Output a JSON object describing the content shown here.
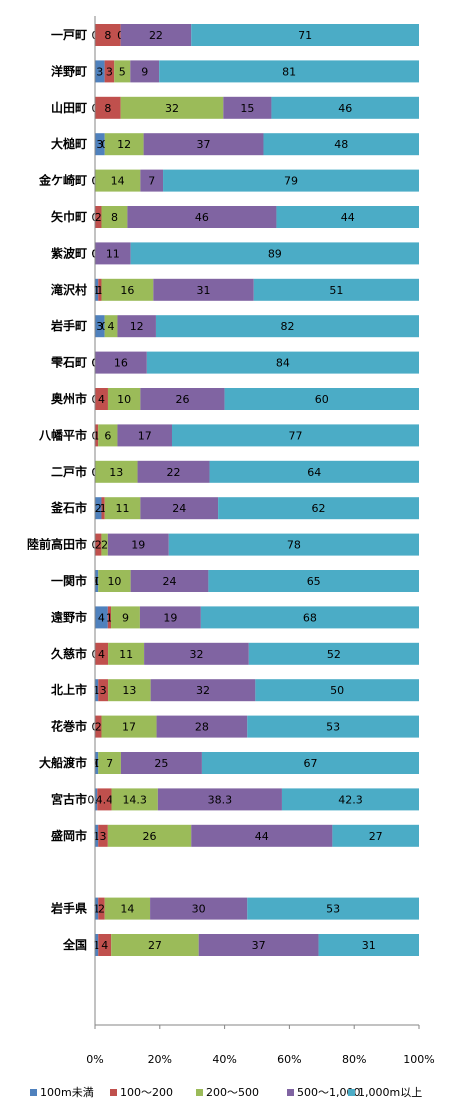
{
  "chart_data": {
    "type": "bar",
    "orientation": "horizontal",
    "stacked": "percent",
    "categories": [
      "一戸町",
      "洋野町",
      "山田町",
      "大槌町",
      "金ケ崎町",
      "矢巾町",
      "紫波町",
      "滝沢村",
      "岩手町",
      "雫石町",
      "奥州市",
      "八幡平市",
      "二戸市",
      "釜石市",
      "陸前高田市",
      "一関市",
      "遠野市",
      "久慈市",
      "北上市",
      "花巻市",
      "大船渡市",
      "宮古市",
      "盛岡市",
      "",
      "岩手県",
      "全国"
    ],
    "series": [
      {
        "name": "100m未満",
        "color": "#4F81BD",
        "values": [
          0,
          3,
          0,
          3,
          0,
          0,
          0,
          1,
          3,
          0,
          0,
          0,
          0,
          2,
          0,
          1,
          4,
          0,
          1,
          0,
          1,
          0.7,
          1,
          null,
          1,
          1
        ],
        "labels": [
          "0",
          "3",
          "0",
          "3",
          "0",
          "0",
          "0",
          "1",
          "3",
          "0",
          "0",
          "0",
          "0",
          "2",
          "0",
          "1",
          "4",
          "0",
          "1",
          "0",
          "1",
          "0.7",
          "1",
          "",
          "1",
          "1"
        ]
      },
      {
        "name": "100〜200",
        "color": "#C0504D",
        "values": [
          8,
          3,
          8,
          0,
          0,
          2,
          0,
          1,
          0,
          0,
          4,
          1,
          0,
          1,
          2,
          0,
          1,
          4,
          3,
          2,
          0,
          4.4,
          3,
          null,
          2,
          4
        ],
        "labels": [
          "8",
          "3",
          "8",
          "0",
          "0",
          "2",
          "0",
          "1",
          "0",
          "0",
          "4",
          "1",
          "0",
          "1",
          "2",
          "0",
          "1",
          "4",
          "3",
          "2",
          "0",
          "4.4",
          "3",
          "",
          "2",
          "4"
        ]
      },
      {
        "name": "200〜500",
        "color": "#9BBB59",
        "values": [
          0,
          5,
          32,
          12,
          14,
          8,
          0,
          16,
          4,
          0,
          10,
          6,
          13,
          11,
          2,
          10,
          9,
          11,
          13,
          17,
          7,
          14.3,
          26,
          null,
          14,
          27
        ],
        "labels": [
          "0",
          "5",
          "32",
          "12",
          "14",
          "8",
          "0",
          "16",
          "4",
          "0",
          "10",
          "6",
          "13",
          "11",
          "2",
          "10",
          "9",
          "11",
          "13",
          "17",
          "7",
          "14.3",
          "26",
          "",
          "14",
          "27"
        ]
      },
      {
        "name": "500〜1,000",
        "color": "#8064A2",
        "values": [
          22,
          9,
          15,
          37,
          7,
          46,
          11,
          31,
          12,
          16,
          26,
          17,
          22,
          24,
          19,
          24,
          19,
          32,
          32,
          28,
          25,
          38.3,
          44,
          null,
          30,
          37
        ],
        "labels": [
          "22",
          "9",
          "15",
          "37",
          "7",
          "46",
          "11",
          "31",
          "12",
          "16",
          "26",
          "17",
          "22",
          "24",
          "19",
          "24",
          "19",
          "32",
          "32",
          "28",
          "25",
          "38.3",
          "44",
          "",
          "30",
          "37"
        ]
      },
      {
        "name": "1,000m以上",
        "color": "#4BACC6",
        "values": [
          71,
          81,
          46,
          48,
          79,
          44,
          89,
          51,
          82,
          84,
          60,
          77,
          64,
          62,
          78,
          65,
          68,
          52,
          50,
          53,
          67,
          42.3,
          27,
          null,
          53,
          31
        ],
        "labels": [
          "71",
          "81",
          "46",
          "48",
          "79",
          "44",
          "89",
          "51",
          "82",
          "84",
          "60",
          "77",
          "64",
          "62",
          "78",
          "65",
          "68",
          "52",
          "50",
          "53",
          "67",
          "42.3",
          "27",
          "",
          "53",
          "31"
        ]
      }
    ],
    "xlim": [
      0,
      100
    ],
    "xticks": [
      "0%",
      "20%",
      "40%",
      "60%",
      "80%",
      "100%"
    ],
    "legend_position": "bottom"
  }
}
